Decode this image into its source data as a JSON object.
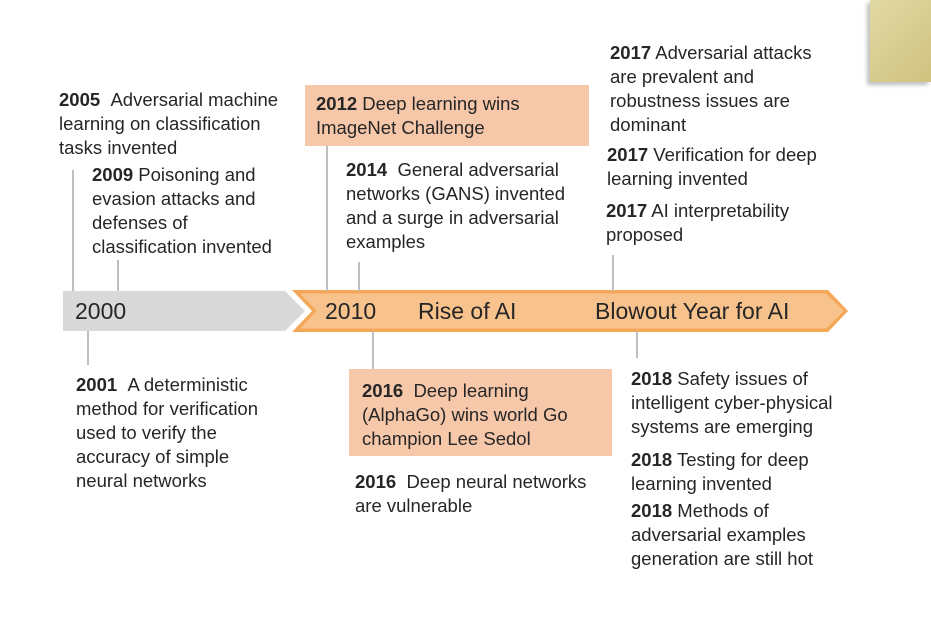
{
  "timeline": {
    "bands": [
      {
        "label": "2000",
        "color": "#d9d9d9"
      },
      {
        "label": "2010",
        "color": "#f8c28c"
      },
      {
        "label": "Rise of AI",
        "color": "#f8c28c"
      },
      {
        "label": "Blowout Year for AI",
        "color": "#f8c28c"
      }
    ],
    "accent_color": "#f4a857",
    "highlight_box_color": "#f6c7a9"
  },
  "events": {
    "e2005": {
      "year": "2005",
      "lines": [
        "Adversarial machine",
        "learning on classification",
        "tasks invented"
      ]
    },
    "e2009": {
      "year": "2009",
      "lines": [
        "Poisoning and",
        "evasion attacks and",
        "defenses of",
        "classification invented"
      ]
    },
    "e2001": {
      "year": "2001",
      "lines": [
        "A deterministic",
        "method for verification",
        "used to verify the",
        "accuracy of simple",
        "neural networks"
      ]
    },
    "e2012": {
      "year": "2012",
      "lines": [
        "Deep learning wins",
        "ImageNet Challenge"
      ]
    },
    "e2014": {
      "year": "2014",
      "lines": [
        "General adversarial",
        "networks (GANS) invented",
        "and a surge in adversarial",
        "examples"
      ]
    },
    "e2016a": {
      "year": "2016",
      "lines": [
        "Deep learning",
        "(AlphaGo) wins world Go",
        "champion Lee Sedol"
      ]
    },
    "e2016b": {
      "year": "2016",
      "lines": [
        "Deep neural networks",
        "are vulnerable"
      ]
    },
    "e2017a": {
      "year": "2017",
      "lines": [
        "Adversarial attacks",
        "are prevalent and",
        "robustness issues are",
        "dominant"
      ]
    },
    "e2017b": {
      "year": "2017",
      "lines": [
        "Verification for deep",
        "learning invented"
      ]
    },
    "e2017c": {
      "year": "2017",
      "lines": [
        "AI interpretability",
        "proposed"
      ]
    },
    "e2018a": {
      "year": "2018",
      "lines": [
        "Safety issues of",
        "intelligent cyber-physical",
        "systems are emerging"
      ]
    },
    "e2018b": {
      "year": "2018",
      "lines": [
        "Testing for deep",
        "learning invented"
      ]
    },
    "e2018c": {
      "year": "2018",
      "lines": [
        "Methods of",
        "adversarial examples",
        "generation are still hot"
      ]
    }
  }
}
